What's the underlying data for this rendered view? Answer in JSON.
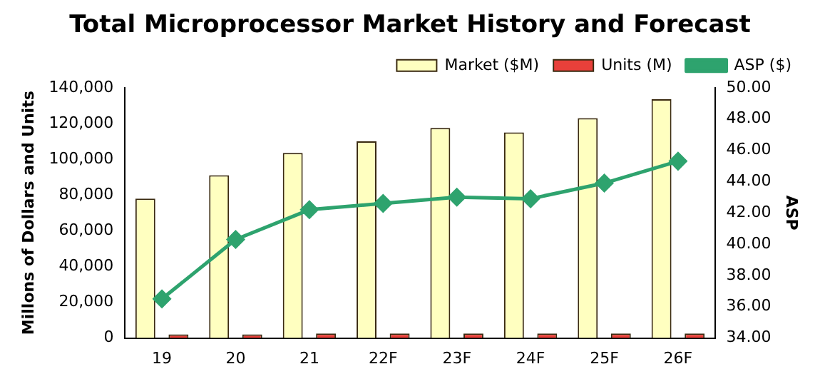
{
  "chart_data": {
    "type": "bar",
    "title": "Total Microprocessor Market History and Forecast",
    "ylabel": "Millons of Dollars and Units",
    "y2label": "ASP",
    "categories": [
      "19",
      "20",
      "21",
      "22F",
      "23F",
      "24F",
      "25F",
      "26F"
    ],
    "series": [
      {
        "name": "Market ($M)",
        "color": "#ffffc0",
        "values": [
          78000,
          91000,
          103500,
          110000,
          117500,
          115000,
          123000,
          133500
        ]
      },
      {
        "name": "Units (M)",
        "color": "#e8403a",
        "values": [
          2000,
          2000,
          2500,
          2500,
          2500,
          2500,
          2500,
          2500
        ]
      },
      {
        "name": "ASP ($)",
        "type": "line",
        "axis": "y2",
        "color": "#2ea36e",
        "marker": "diamond",
        "values": [
          36.5,
          40.3,
          42.2,
          42.6,
          43.0,
          42.9,
          43.9,
          45.3
        ]
      }
    ],
    "ylim": [
      0,
      140000
    ],
    "yticks": [
      0,
      {
        "value": 20000,
        "label": "20,000"
      },
      {
        "value": 40000,
        "label": "40,000"
      },
      {
        "value": 60000,
        "label": "60,000"
      },
      {
        "value": 80000,
        "label": "80,000"
      },
      {
        "value": 100000,
        "label": "100,000"
      },
      {
        "value": 120000,
        "label": "120,000"
      },
      {
        "value": 140000,
        "label": "140,000"
      }
    ],
    "y2lim": [
      34,
      50
    ],
    "y2ticks": [
      {
        "value": 34,
        "label": "34.00"
      },
      {
        "value": 36,
        "label": "36.00"
      },
      {
        "value": 38,
        "label": "38.00"
      },
      {
        "value": 40,
        "label": "40.00"
      },
      {
        "value": 42,
        "label": "42.00"
      },
      {
        "value": 44,
        "label": "44.00"
      },
      {
        "value": 46,
        "label": "46.00"
      },
      {
        "value": 48,
        "label": "48.00"
      },
      {
        "value": 50,
        "label": "50.00"
      }
    ],
    "grid": false,
    "legend": "top"
  }
}
